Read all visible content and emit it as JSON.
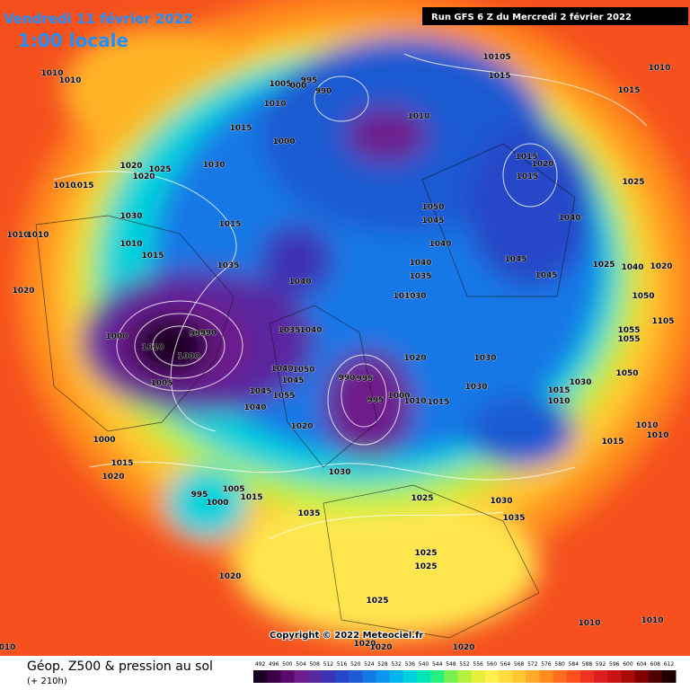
{
  "header": {
    "date": "Vendredi 11 février 2022",
    "time": "1:00 locale",
    "run": "Run GFS 6 Z du Mercredi 2 février 2022"
  },
  "copyright": "Copyright © 2022 Meteociel.fr",
  "legend": {
    "title": "Géop. Z500 & pression au sol",
    "lead": "(+ 210h)",
    "scale": [
      492,
      496,
      500,
      504,
      508,
      512,
      516,
      520,
      524,
      528,
      532,
      536,
      540,
      544,
      548,
      552,
      556,
      560,
      564,
      568,
      572,
      576,
      580,
      584,
      588,
      592,
      596,
      600,
      604,
      608,
      612
    ],
    "colors": [
      "#1a0022",
      "#3c0046",
      "#5a0a6e",
      "#6e1e8c",
      "#5a28a0",
      "#3c32b4",
      "#2846c8",
      "#1e5ad2",
      "#1478e6",
      "#0a96f0",
      "#00b4f0",
      "#00d2dc",
      "#00e6b4",
      "#28f080",
      "#78f050",
      "#b4f03c",
      "#e6f03c",
      "#fff050",
      "#ffdc3c",
      "#ffc832",
      "#ffaa28",
      "#ff8c1e",
      "#ff6e1e",
      "#ff501e",
      "#f0321e",
      "#dc1e1e",
      "#c81414",
      "#aa0a0a",
      "#820000",
      "#500000",
      "#1e0000"
    ]
  },
  "isobar_labels": [
    "1010",
    "1010",
    "1005",
    "995",
    "000",
    "990",
    "1010",
    "1000",
    "1015",
    "1010",
    "10105",
    "1015",
    "1010",
    "1015",
    "1020",
    "1025",
    "1030",
    "1020",
    "1015",
    "1010",
    "1015",
    "1020",
    "1015",
    "1025",
    "1030",
    "1015",
    "1050",
    "1045",
    "1040",
    "1010",
    "1015",
    "1040",
    "1045",
    "1040",
    "1035",
    "1035",
    "1025",
    "1040",
    "1020",
    "1010",
    "1010",
    "1040",
    "1030",
    "1010",
    "1045",
    "1050",
    "1020",
    "1000",
    "1010",
    "990",
    "990",
    "1000",
    "1035",
    "1040",
    "1020",
    "1030",
    "1005",
    "1050",
    "1045",
    "1040",
    "1055",
    "1045",
    "1040",
    "990",
    "995",
    "1030",
    "1015",
    "1030",
    "1010",
    "1050",
    "995",
    "1000",
    "1010",
    "1015",
    "1020",
    "1010",
    "1010",
    "1015",
    "1000",
    "1015",
    "1020",
    "1030",
    "995",
    "1005",
    "1000",
    "1015",
    "1025",
    "1030",
    "1035",
    "1035",
    "1025",
    "1025",
    "1020",
    "1025",
    "1010",
    "1010",
    "1020",
    "1020",
    "1020",
    "010",
    "1055",
    "1055",
    "1105"
  ]
}
